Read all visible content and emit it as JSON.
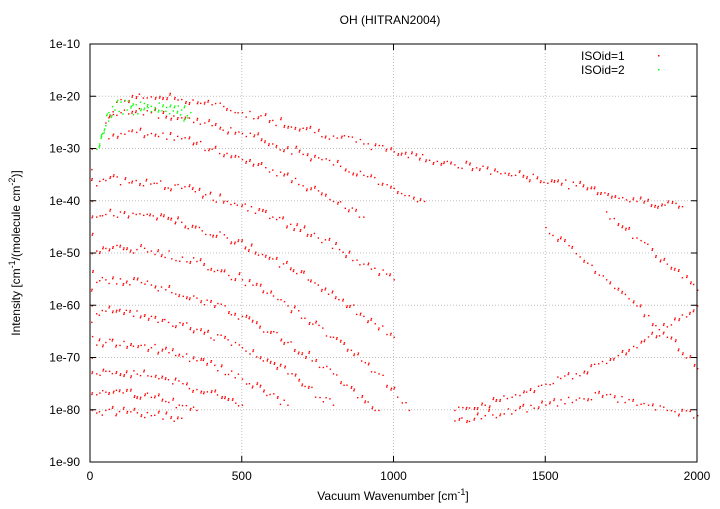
{
  "chart_data": {
    "type": "scatter",
    "title": "OH (HITRAN2004)",
    "xlabel": "Vacuum Wavenumber [cm-1]",
    "xlabel_main": "Vacuum Wavenumber [cm",
    "xlabel_sup": "-1",
    "xlabel_close": "]",
    "ylabel": "Intensity [cm-1/(molecule cm-2)]",
    "ylabel_parts": [
      "Intensity [cm",
      "-1",
      "/(molecule cm",
      "-2",
      ")]"
    ],
    "xlim": [
      0,
      2000
    ],
    "ylim": [
      1e-90,
      1e-10
    ],
    "yscale": "log",
    "grid": true,
    "legend_position": "top-right",
    "xticks": [
      "0",
      "500",
      "1000",
      "1500",
      "2000"
    ],
    "xtick_values": [
      0,
      500,
      1000,
      1500,
      2000
    ],
    "yticks": [
      "1e-10",
      "1e-20",
      "1e-30",
      "1e-40",
      "1e-50",
      "1e-60",
      "1e-70",
      "1e-80",
      "1e-90"
    ],
    "ytick_exponents": [
      -10,
      -20,
      -30,
      -40,
      -50,
      -60,
      -70,
      -80,
      -90
    ],
    "note": "points are approximate band traces given as [wavenumber, log10(intensity)]",
    "series": [
      {
        "name": "ISOid=1",
        "color": "#ff0000",
        "bands": [
          [
            [
              50,
              -25
            ],
            [
              100,
              -20.5
            ],
            [
              200,
              -20
            ],
            [
              300,
              -20.5
            ],
            [
              400,
              -21.5
            ],
            [
              500,
              -23
            ],
            [
              600,
              -24.5
            ],
            [
              700,
              -26
            ],
            [
              800,
              -27.5
            ],
            [
              900,
              -29
            ],
            [
              1000,
              -30.5
            ],
            [
              1200,
              -33
            ],
            [
              1400,
              -35
            ],
            [
              1600,
              -37
            ],
            [
              1800,
              -40
            ],
            [
              1950,
              -41
            ]
          ],
          [
            [
              60,
              -24
            ],
            [
              100,
              -23
            ],
            [
              200,
              -23
            ],
            [
              300,
              -24
            ],
            [
              400,
              -25.5
            ],
            [
              500,
              -27
            ],
            [
              600,
              -29
            ],
            [
              700,
              -31
            ],
            [
              800,
              -33
            ],
            [
              900,
              -35
            ],
            [
              1000,
              -37.5
            ],
            [
              1100,
              -40
            ]
          ],
          [
            [
              60,
              -28
            ],
            [
              100,
              -27
            ],
            [
              200,
              -27
            ],
            [
              300,
              -28
            ],
            [
              400,
              -30
            ],
            [
              500,
              -32
            ],
            [
              600,
              -34
            ],
            [
              700,
              -37
            ],
            [
              800,
              -40
            ],
            [
              900,
              -43
            ]
          ],
          [
            [
              20,
              -37
            ],
            [
              50,
              -36
            ],
            [
              150,
              -36
            ],
            [
              300,
              -37.5
            ],
            [
              450,
              -40
            ],
            [
              600,
              -43
            ],
            [
              750,
              -47
            ],
            [
              900,
              -52
            ],
            [
              1000,
              -55
            ]
          ],
          [
            [
              20,
              -43
            ],
            [
              50,
              -42.5
            ],
            [
              150,
              -42.5
            ],
            [
              300,
              -44
            ],
            [
              450,
              -47
            ],
            [
              600,
              -51
            ],
            [
              750,
              -56
            ],
            [
              900,
              -62
            ],
            [
              1000,
              -66
            ]
          ],
          [
            [
              20,
              -49.5
            ],
            [
              50,
              -49
            ],
            [
              200,
              -49.5
            ],
            [
              350,
              -51.5
            ],
            [
              500,
              -55
            ],
            [
              650,
              -60
            ],
            [
              800,
              -66
            ],
            [
              950,
              -73
            ],
            [
              1050,
              -80
            ]
          ],
          [
            [
              20,
              -55.5
            ],
            [
              50,
              -55
            ],
            [
              200,
              -56
            ],
            [
              350,
              -58.5
            ],
            [
              500,
              -62
            ],
            [
              650,
              -67
            ],
            [
              800,
              -73
            ],
            [
              950,
              -80
            ]
          ],
          [
            [
              20,
              -61.5
            ],
            [
              50,
              -61
            ],
            [
              200,
              -62
            ],
            [
              350,
              -64.5
            ],
            [
              500,
              -68
            ],
            [
              650,
              -73
            ],
            [
              800,
              -79
            ]
          ],
          [
            [
              20,
              -67.5
            ],
            [
              50,
              -67
            ],
            [
              200,
              -68
            ],
            [
              350,
              -70.5
            ],
            [
              500,
              -74
            ],
            [
              650,
              -79
            ]
          ],
          [
            [
              20,
              -73
            ],
            [
              50,
              -72.5
            ],
            [
              200,
              -73.5
            ],
            [
              350,
              -76
            ],
            [
              500,
              -79
            ]
          ],
          [
            [
              20,
              -77
            ],
            [
              50,
              -76.5
            ],
            [
              200,
              -77.5
            ],
            [
              350,
              -80
            ]
          ],
          [
            [
              20,
              -80.5
            ],
            [
              50,
              -80
            ],
            [
              200,
              -81
            ],
            [
              300,
              -81.5
            ]
          ],
          [
            [
              1200,
              -80
            ],
            [
              1300,
              -79
            ],
            [
              1400,
              -77
            ],
            [
              1500,
              -75
            ],
            [
              1600,
              -73
            ],
            [
              1700,
              -71
            ],
            [
              1800,
              -68
            ],
            [
              1900,
              -64
            ],
            [
              2000,
              -60
            ]
          ],
          [
            [
              1200,
              -82
            ],
            [
              1300,
              -81
            ],
            [
              1400,
              -80
            ],
            [
              1500,
              -79
            ],
            [
              1600,
              -78
            ],
            [
              1700,
              -77
            ],
            [
              1800,
              -79
            ],
            [
              1900,
              -80
            ],
            [
              2000,
              -81
            ]
          ],
          [
            [
              1500,
              -45
            ],
            [
              1600,
              -50
            ],
            [
              1700,
              -55
            ],
            [
              1800,
              -60
            ],
            [
              1900,
              -66
            ],
            [
              2000,
              -72
            ]
          ],
          [
            [
              1700,
              -42
            ],
            [
              1800,
              -47
            ],
            [
              1900,
              -52
            ],
            [
              2000,
              -57
            ]
          ],
          [
            [
              5,
              -30
            ],
            [
              5,
              -40
            ],
            [
              5,
              -50
            ],
            [
              5,
              -60
            ],
            [
              5,
              -70
            ],
            [
              5,
              -80
            ]
          ]
        ]
      },
      {
        "name": "ISOid=2",
        "color": "#00ff00",
        "bands": [
          [
            [
              20,
              -30
            ],
            [
              40,
              -27
            ],
            [
              60,
              -23
            ],
            [
              100,
              -21
            ],
            [
              150,
              -21.5
            ],
            [
              200,
              -21.8
            ],
            [
              250,
              -22
            ],
            [
              300,
              -22.5
            ],
            [
              330,
              -23
            ]
          ],
          [
            [
              30,
              -29
            ],
            [
              50,
              -25.5
            ],
            [
              80,
              -22.5
            ],
            [
              120,
              -22.5
            ],
            [
              200,
              -22.8
            ],
            [
              260,
              -23.2
            ],
            [
              320,
              -24
            ]
          ]
        ]
      }
    ]
  }
}
